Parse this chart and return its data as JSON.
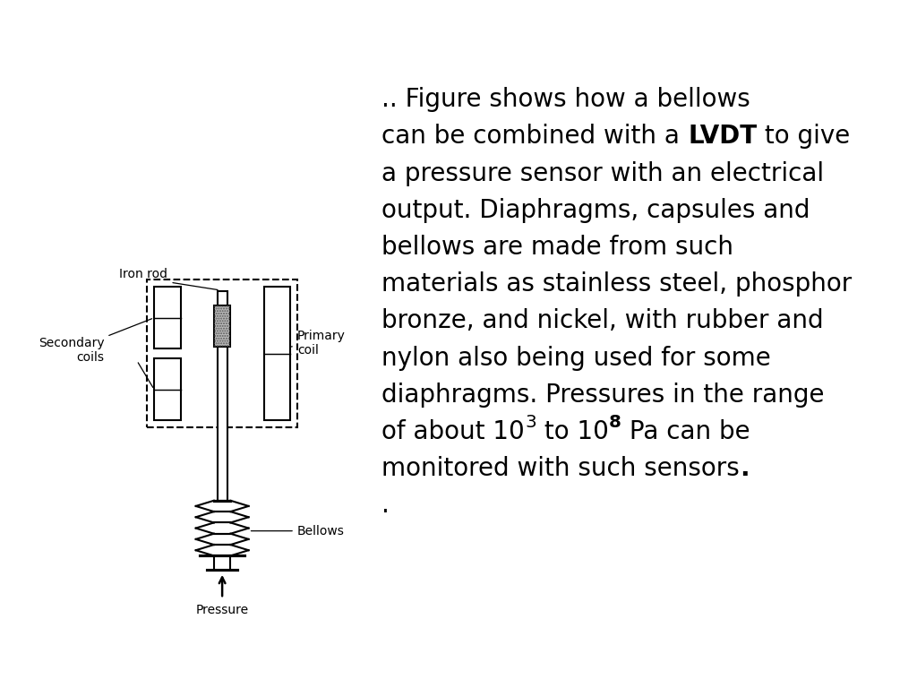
{
  "bg_color": "#ffffff",
  "font_size": 20,
  "label_font_size": 10,
  "diagram_color": "#000000",
  "text_lines": [
    [
      [
        ".. Figure shows how a bellows",
        false,
        false
      ]
    ],
    [
      [
        "can be combined with a ",
        false,
        false
      ],
      [
        "LVDT",
        true,
        false
      ],
      [
        " to give",
        false,
        false
      ]
    ],
    [
      [
        "a pressure sensor with an electrical",
        false,
        false
      ]
    ],
    [
      [
        "output. Diaphragms, capsules and",
        false,
        false
      ]
    ],
    [
      [
        "bellows are made from such",
        false,
        false
      ]
    ],
    [
      [
        "materials as stainless steel, phosphor",
        false,
        false
      ]
    ],
    [
      [
        "bronze, and nickel, with rubber and",
        false,
        false
      ]
    ],
    [
      [
        "nylon also being used for some",
        false,
        false
      ]
    ],
    [
      [
        "diaphragms. Pressures in the range",
        false,
        false
      ]
    ],
    [
      [
        "of about 10",
        false,
        false
      ],
      [
        "3",
        false,
        true
      ],
      [
        " to 10",
        false,
        false
      ],
      [
        "8",
        true,
        true
      ],
      [
        " Pa can be",
        false,
        false
      ]
    ],
    [
      [
        "monitored with such sensors",
        false,
        false
      ],
      [
        ".",
        true,
        false
      ]
    ],
    [
      [
        ".",
        false,
        false
      ]
    ]
  ]
}
